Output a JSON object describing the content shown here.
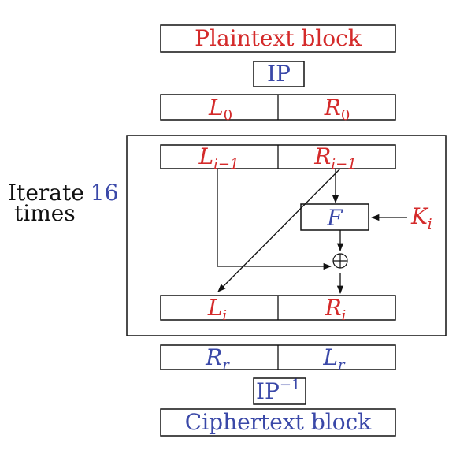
{
  "diagram": {
    "plaintext_label": "Plaintext block",
    "ip_label": "IP",
    "ip_inverse_base": "IP",
    "ip_inverse_sup": "−1",
    "ciphertext_label": "Ciphertext block",
    "iterate_prefix": "Iterate",
    "iterate_count": "16",
    "iterate_suffix": "times",
    "l0": {
      "base": "L",
      "sub": "0"
    },
    "r0": {
      "base": "R",
      "sub": "0"
    },
    "li_minus_1": {
      "base": "L",
      "sub": "i−1"
    },
    "ri_minus_1": {
      "base": "R",
      "sub": "i−1"
    },
    "f_label": "F",
    "ki": {
      "base": "K",
      "sub": "i"
    },
    "li": {
      "base": "L",
      "sub": "i"
    },
    "ri": {
      "base": "R",
      "sub": "i"
    },
    "rr": {
      "base": "R",
      "sub": "r"
    },
    "lr": {
      "base": "L",
      "sub": "r"
    },
    "xor_symbol": "⊕",
    "colors": {
      "red": "#d42a2a",
      "blue": "#3a48a8",
      "black": "#111111"
    }
  }
}
